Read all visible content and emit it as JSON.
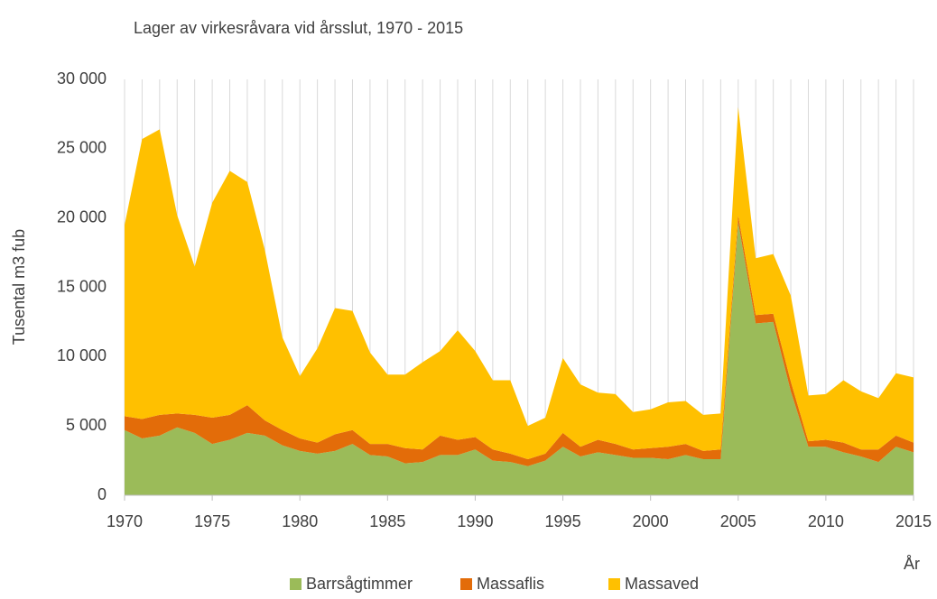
{
  "chart_data": {
    "type": "stacked_area",
    "title": "Lager av virkesråvara vid årsslut, 1970 - 2015",
    "ylabel": "Tusental m3 fub",
    "xlabel": "År",
    "x": [
      1970,
      1971,
      1972,
      1973,
      1974,
      1975,
      1976,
      1977,
      1978,
      1979,
      1980,
      1981,
      1982,
      1983,
      1984,
      1985,
      1986,
      1987,
      1988,
      1989,
      1990,
      1991,
      1992,
      1993,
      1994,
      1995,
      1996,
      1997,
      1998,
      1999,
      2000,
      2001,
      2002,
      2003,
      2004,
      2005,
      2006,
      2007,
      2008,
      2009,
      2010,
      2011,
      2012,
      2013,
      2014,
      2015
    ],
    "series": [
      {
        "name": "Barrsågtimmer",
        "color": "#9bbb59",
        "values": [
          4700,
          4100,
          4300,
          4900,
          4500,
          3700,
          4000,
          4500,
          4300,
          3600,
          3200,
          3000,
          3200,
          3700,
          2900,
          2800,
          2300,
          2400,
          2900,
          2900,
          3300,
          2500,
          2400,
          2100,
          2500,
          3500,
          2800,
          3100,
          2900,
          2700,
          2700,
          2600,
          2900,
          2600,
          2600,
          19700,
          12400,
          12500,
          7500,
          3500,
          3500,
          3100,
          2800,
          2400,
          3500,
          3100
        ]
      },
      {
        "name": "Massaflis",
        "color": "#e36c09",
        "values": [
          1000,
          1400,
          1500,
          1000,
          1300,
          1900,
          1800,
          2000,
          1100,
          1100,
          900,
          800,
          1200,
          1000,
          800,
          900,
          1100,
          900,
          1400,
          1100,
          900,
          800,
          600,
          500,
          500,
          1000,
          700,
          900,
          800,
          600,
          700,
          900,
          800,
          600,
          700,
          500,
          600,
          600,
          700,
          400,
          500,
          700,
          500,
          900,
          800,
          700
        ]
      },
      {
        "name": "Massaved",
        "color": "#ffc000",
        "values": [
          13800,
          20200,
          20600,
          14300,
          10700,
          15500,
          17600,
          16100,
          12300,
          6700,
          4500,
          6800,
          9100,
          8600,
          6600,
          5000,
          5300,
          6300,
          6100,
          7900,
          6200,
          5000,
          5300,
          2400,
          2600,
          5400,
          4500,
          3400,
          3600,
          2700,
          2800,
          3200,
          3100,
          2600,
          2600,
          7800,
          4100,
          4300,
          6200,
          3300,
          3300,
          4500,
          4200,
          3700,
          4500,
          4700
        ]
      }
    ],
    "xlim": [
      1970,
      2015
    ],
    "xticks": [
      1970,
      1975,
      1980,
      1985,
      1990,
      1995,
      2000,
      2005,
      2010,
      2015
    ],
    "ylim": [
      0,
      30000
    ],
    "yticks": [
      0,
      {
        "value": 5000,
        "label": "5 000"
      },
      {
        "value": 10000,
        "label": "10 000"
      },
      {
        "value": 15000,
        "label": "15 000"
      },
      {
        "value": 20000,
        "label": "20 000"
      },
      {
        "value": 25000,
        "label": "25 000"
      },
      {
        "value": 30000,
        "label": "30 000"
      }
    ],
    "grid": true,
    "legend": "bottom"
  }
}
